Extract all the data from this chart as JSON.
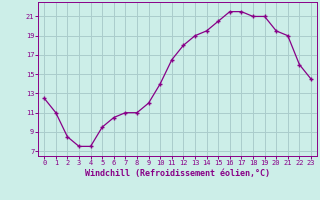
{
  "x": [
    0,
    1,
    2,
    3,
    4,
    5,
    6,
    7,
    8,
    9,
    10,
    11,
    12,
    13,
    14,
    15,
    16,
    17,
    18,
    19,
    20,
    21,
    22,
    23
  ],
  "y": [
    12.5,
    11.0,
    8.5,
    7.5,
    7.5,
    9.5,
    10.5,
    11.0,
    11.0,
    12.0,
    14.0,
    16.5,
    18.0,
    19.0,
    19.5,
    20.5,
    21.5,
    21.5,
    21.0,
    21.0,
    19.5,
    19.0,
    16.0,
    14.5
  ],
  "line_color": "#880088",
  "marker": "+",
  "marker_size": 3.5,
  "marker_edge_width": 1.0,
  "line_width": 0.9,
  "bg_color": "#cceee8",
  "grid_color": "#aacccc",
  "xlabel": "Windchill (Refroidissement éolien,°C)",
  "xlabel_color": "#880088",
  "tick_color": "#880088",
  "ylabel_ticks": [
    7,
    9,
    11,
    13,
    15,
    17,
    19,
    21
  ],
  "xlim": [
    -0.5,
    23.5
  ],
  "ylim": [
    6.5,
    22.5
  ],
  "tick_fontsize": 5.0,
  "xlabel_fontsize": 6.0
}
